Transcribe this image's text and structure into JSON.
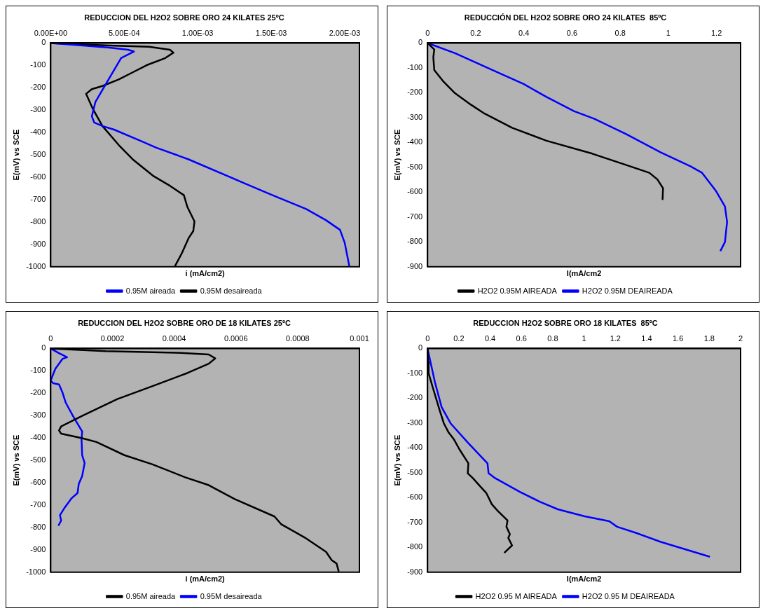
{
  "chart_data": [
    {
      "type": "line",
      "title": "REDUCCION DEL H2O2 SOBRE ORO 24 KILATES 25ºC",
      "xlabel": "i (mA/cm2)",
      "ylabel": "E(mV) vs SCE",
      "xlim": [
        0,
        0.0021
      ],
      "xticks": [
        {
          "value": 0,
          "label": "0.00E+00"
        },
        {
          "value": 0.0005,
          "label": "5.00E-04"
        },
        {
          "value": 0.001,
          "label": "1.00E-03"
        },
        {
          "value": 0.0015,
          "label": "1.50E-03"
        },
        {
          "value": 0.002,
          "label": "2.00E-03"
        }
      ],
      "ylim": [
        -1000,
        0
      ],
      "yticks": [
        0,
        -100,
        -200,
        -300,
        -400,
        -500,
        -600,
        -700,
        -800,
        -900,
        -1000
      ],
      "grid": false,
      "legend": "bottom",
      "marker": "none",
      "line_style": "solid",
      "series": [
        {
          "name": "0.95M aireada",
          "color": "#0000ff",
          "x": [
            0,
            0.000114,
            0.0004,
            0.000526,
            0.000566,
            0.000479,
            0.000384,
            0.000304,
            0.00028,
            0.000296,
            0.000352,
            0.000431,
            0.000621,
            0.000716,
            0.000938,
            0.001287,
            0.001509,
            0.001738,
            0.001873,
            0.001968,
            0.002,
            0.002032
          ],
          "values": [
            0,
            -6,
            -21,
            -30,
            -38,
            -67,
            -174,
            -264,
            -328,
            -355,
            -371,
            -387,
            -440,
            -467,
            -520,
            -618,
            -680,
            -742,
            -792,
            -835,
            -893,
            -1000
          ]
        },
        {
          "name": "0.95M desaireada",
          "color": "#000000",
          "x": [
            0,
            0.0004,
            0.000669,
            0.000811,
            0.000835,
            0.00078,
            0.000653,
            0.000558,
            0.000463,
            0.000352,
            0.00028,
            0.000241,
            0.000288,
            0.000352,
            0.000463,
            0.000558,
            0.0007,
            0.000811,
            0.000906,
            0.00093,
            0.000978,
            0.00097,
            0.000938,
            0.000891,
            0.000843
          ],
          "values": [
            0,
            -11,
            -17,
            -30,
            -43,
            -67,
            -99,
            -131,
            -163,
            -192,
            -206,
            -227,
            -296,
            -371,
            -456,
            -520,
            -595,
            -638,
            -680,
            -733,
            -797,
            -840,
            -872,
            -941,
            -1000
          ]
        }
      ]
    },
    {
      "type": "line",
      "title": "REDUCCIÓN DEL H2O2 SOBRE ORO 24 KILATES  85ºC",
      "xlabel": "I(mA/cm2",
      "ylabel": "E(mV) vs SCE",
      "xlim": [
        0,
        1.3
      ],
      "xticks": [
        0,
        0.2,
        0.4,
        0.6,
        0.8,
        1,
        1.2
      ],
      "ylim": [
        -900,
        0
      ],
      "yticks": [
        0,
        -100,
        -200,
        -300,
        -400,
        -500,
        -600,
        -700,
        -800,
        -900
      ],
      "grid": false,
      "legend": "bottom",
      "marker": "none",
      "line_style": "solid",
      "series": [
        {
          "name": "H2O2 0.95M AIREADA",
          "color": "#000000",
          "x": [
            0,
            0.028,
            0.024,
            0.028,
            0.066,
            0.114,
            0.18,
            0.237,
            0.351,
            0.494,
            0.684,
            0.826,
            0.921,
            0.954,
            0.978,
            0.976
          ],
          "values": [
            0,
            -26,
            -57,
            -109,
            -155,
            -202,
            -248,
            -284,
            -341,
            -393,
            -445,
            -491,
            -522,
            -548,
            -584,
            -631
          ]
        },
        {
          "name": "H2O2 0.95M DEAIREADA",
          "color": "#0000ff",
          "x": [
            0,
            0.114,
            0.256,
            0.399,
            0.494,
            0.608,
            0.693,
            0.826,
            0.969,
            1.092,
            1.14,
            1.197,
            1.235,
            1.244,
            1.235,
            1.216
          ],
          "values": [
            0,
            -41,
            -103,
            -165,
            -217,
            -274,
            -305,
            -367,
            -440,
            -496,
            -522,
            -594,
            -657,
            -719,
            -801,
            -837
          ]
        }
      ]
    },
    {
      "type": "line",
      "title": "REDUCCION DEL H2O2 SOBRE ORO DE 18 KILATES 25ºC",
      "xlabel": "i (mA/cm2)",
      "ylabel": "E(mV) vs SCE",
      "xlim": [
        0,
        0.001
      ],
      "xticks": [
        0,
        0.0002,
        0.0004,
        0.0006,
        0.0008,
        0.001
      ],
      "ylim": [
        -1000,
        0
      ],
      "yticks": [
        0,
        -100,
        -200,
        -300,
        -400,
        -500,
        -600,
        -700,
        -800,
        -900,
        -1000
      ],
      "grid": false,
      "legend": "bottom",
      "marker": "none",
      "line_style": "solid",
      "series": [
        {
          "name": "0.95M aireada",
          "color": "#000000",
          "x": [
            0,
            0.000178,
            0.000406,
            0.000512,
            0.000533,
            0.000512,
            0.000444,
            0.00033,
            0.000216,
            0.000102,
            3.4e-05,
            2.7e-05,
            3.4e-05,
            0.000102,
            0.000148,
            0.000239,
            0.00033,
            0.000436,
            0.000512,
            0.000596,
            0.000725,
            0.000747,
            0.000823,
            0.000892,
            0.00091,
            0.000926,
            0.000933
          ],
          "values": [
            0,
            -12,
            -19,
            -27,
            -44,
            -68,
            -109,
            -168,
            -226,
            -301,
            -348,
            -366,
            -381,
            -401,
            -418,
            -477,
            -518,
            -576,
            -611,
            -673,
            -751,
            -786,
            -845,
            -909,
            -946,
            -961,
            -997
          ]
        },
        {
          "name": "0.95M desaireada",
          "color": "#0000ff",
          "x": [
            0,
            2.7e-05,
            5.3e-05,
            3.8e-05,
            1.5e-05,
            0,
            8e-06,
            2.7e-05,
            3.8e-05,
            4.9e-05,
            7.2e-05,
            0.000102,
            0.0001,
            0.000102,
            0.00011,
            0.000102,
            9.1e-05,
            8.7e-05,
            6.8e-05,
            4.6e-05,
            3e-05,
            3.4e-05,
            2.5e-05
          ],
          "values": [
            0,
            -21,
            -39,
            -47,
            -91,
            -144,
            -155,
            -161,
            -196,
            -243,
            -301,
            -371,
            -407,
            -477,
            -512,
            -570,
            -605,
            -646,
            -669,
            -710,
            -745,
            -769,
            -792
          ]
        }
      ]
    },
    {
      "type": "line",
      "title": "REDUCCION H2O2 SOBRE ORO 18 KILATES  85ºC",
      "xlabel": "I(mA/cm2",
      "ylabel": "E(mV) vs SCE",
      "xlim": [
        0,
        2
      ],
      "xticks": [
        0,
        0.2,
        0.4,
        0.6,
        0.8,
        1,
        1.2,
        1.4,
        1.6,
        1.8,
        2
      ],
      "ylim": [
        -900,
        0
      ],
      "yticks": [
        0,
        -100,
        -200,
        -300,
        -400,
        -500,
        -600,
        -700,
        -800,
        -900
      ],
      "grid": false,
      "legend": "bottom",
      "marker": "none",
      "line_style": "solid",
      "series": [
        {
          "name": "H2O2 0.95 M AIREADA",
          "color": "#000000",
          "x": [
            0,
            0.004,
            0.007,
            0.033,
            0.076,
            0.104,
            0.133,
            0.169,
            0.204,
            0.261,
            0.257,
            0.29,
            0.333,
            0.376,
            0.411,
            0.447,
            0.511,
            0.504,
            0.526,
            0.516,
            0.54,
            0.49
          ],
          "values": [
            0,
            -55,
            -100,
            -156,
            -246,
            -301,
            -336,
            -366,
            -406,
            -462,
            -502,
            -522,
            -552,
            -582,
            -627,
            -652,
            -692,
            -717,
            -747,
            -762,
            -792,
            -822
          ]
        },
        {
          "name": "H2O2 0.95 M DEAIREADA",
          "color": "#0000ff",
          "x": [
            0,
            0.019,
            0.047,
            0.09,
            0.147,
            0.261,
            0.383,
            0.39,
            0.433,
            0.59,
            0.719,
            0.833,
            1.004,
            1.161,
            1.211,
            1.333,
            1.49,
            1.804
          ],
          "values": [
            0,
            -55,
            -135,
            -236,
            -301,
            -381,
            -462,
            -502,
            -522,
            -577,
            -617,
            -647,
            -675,
            -695,
            -717,
            -742,
            -778,
            -838
          ]
        }
      ]
    }
  ]
}
